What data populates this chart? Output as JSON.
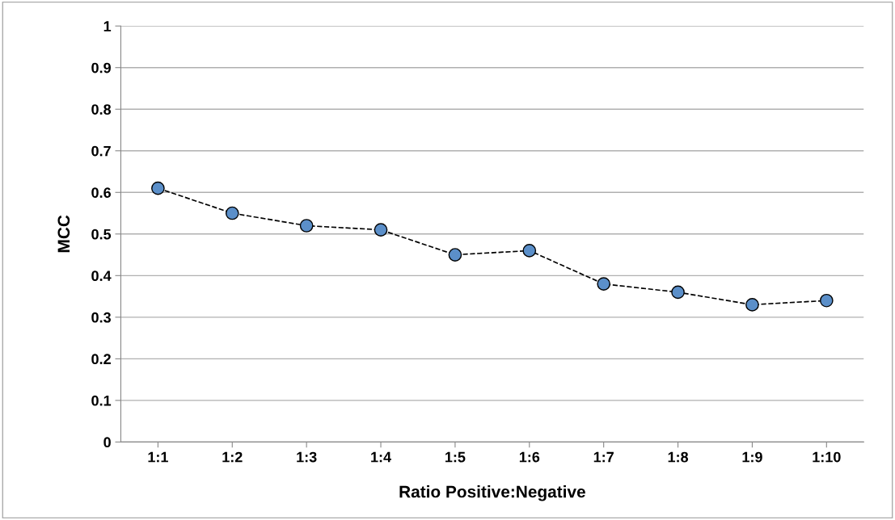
{
  "chart_data": {
    "type": "line",
    "xlabel": "Ratio Positive:Negative",
    "ylabel": "MCC",
    "categories": [
      "1:1",
      "1:2",
      "1:3",
      "1:4",
      "1:5",
      "1:6",
      "1:7",
      "1:8",
      "1:9",
      "1:10"
    ],
    "series": [
      {
        "color": "#5b8fc9",
        "values": [
          0.61,
          0.55,
          0.52,
          0.51,
          0.45,
          0.46,
          0.38,
          0.36,
          0.33,
          0.34
        ]
      }
    ],
    "ylim": [
      0,
      1
    ],
    "yticks": [
      0,
      0.1,
      0.2,
      0.3,
      0.4,
      0.5,
      0.6,
      0.7,
      0.8,
      0.9,
      1
    ],
    "grid": "y",
    "marker": "circle",
    "line_style": "dashed"
  }
}
